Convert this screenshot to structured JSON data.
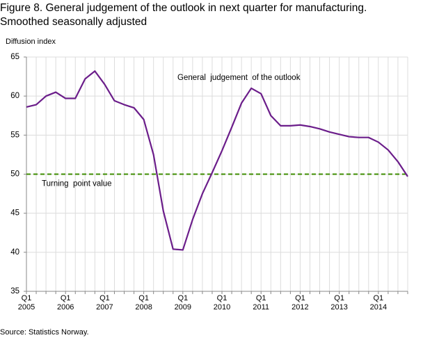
{
  "chart_data": {
    "type": "line",
    "title": "Figure 8. General judgement of the outlook in next quarter for manufacturing.\nSmoothed seasonally adjusted",
    "y_label": "Diffusion index",
    "source": "Source: Statistics Norway.",
    "categories": [
      "Q1\n2005",
      null,
      null,
      null,
      "Q1\n2006",
      null,
      null,
      null,
      "Q1\n2007",
      null,
      null,
      null,
      "Q1\n2008",
      null,
      null,
      null,
      "Q1\n2009",
      null,
      null,
      null,
      "Q1\n2010",
      null,
      null,
      null,
      "Q1\n2011",
      null,
      null,
      null,
      "Q1\n2012",
      null,
      null,
      null,
      "Q1\n2013",
      null,
      null,
      null,
      "Q1\n2014",
      null,
      null,
      null
    ],
    "series": [
      {
        "name": "General  judgement  of the outlook",
        "color": "#6b1d8a",
        "values": [
          58.6,
          58.9,
          60.0,
          60.5,
          59.7,
          59.7,
          62.2,
          63.2,
          61.5,
          59.4,
          58.9,
          58.5,
          57.0,
          52.5,
          45.3,
          40.4,
          40.3,
          44.2,
          47.5,
          50.2,
          53.0,
          56.0,
          59.1,
          61.0,
          60.3,
          57.5,
          56.2,
          56.2,
          56.3,
          56.1,
          55.8,
          55.4,
          55.1,
          54.8,
          54.7,
          54.7,
          54.1,
          53.1,
          51.6,
          49.7
        ]
      }
    ],
    "reference_line": {
      "value": 50,
      "label": "Turning  point value",
      "color": "#3d8c00"
    },
    "ylim": [
      35,
      65
    ],
    "yticks": [
      35,
      40,
      45,
      50,
      55,
      60,
      65
    ],
    "grid": true
  }
}
